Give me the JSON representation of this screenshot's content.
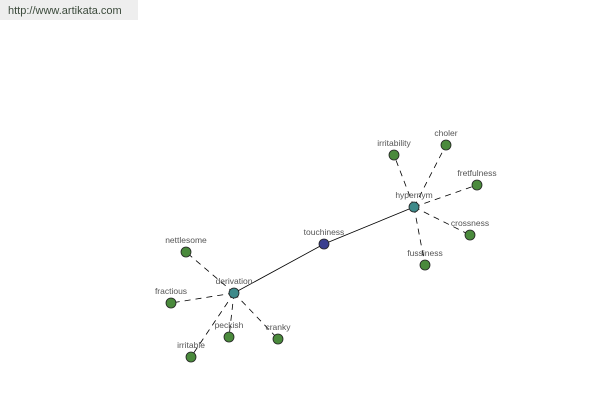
{
  "header": {
    "url": "http://www.artikata.com"
  },
  "colors": {
    "center": "#3a3f8f",
    "relation": "#3e8a8a",
    "leaf": "#4a8a3c",
    "edge": "#000000"
  },
  "graph": {
    "center": {
      "id": "touchiness",
      "label": "touchiness"
    },
    "relations": [
      {
        "id": "hypernym",
        "label": "hypernym",
        "children": [
          "irritability",
          "choler",
          "fretfulness",
          "crossness",
          "fussiness"
        ]
      },
      {
        "id": "derivation",
        "label": "derivation",
        "children": [
          "nettlesome",
          "fractious",
          "irritable",
          "peckish",
          "cranky"
        ]
      }
    ]
  }
}
